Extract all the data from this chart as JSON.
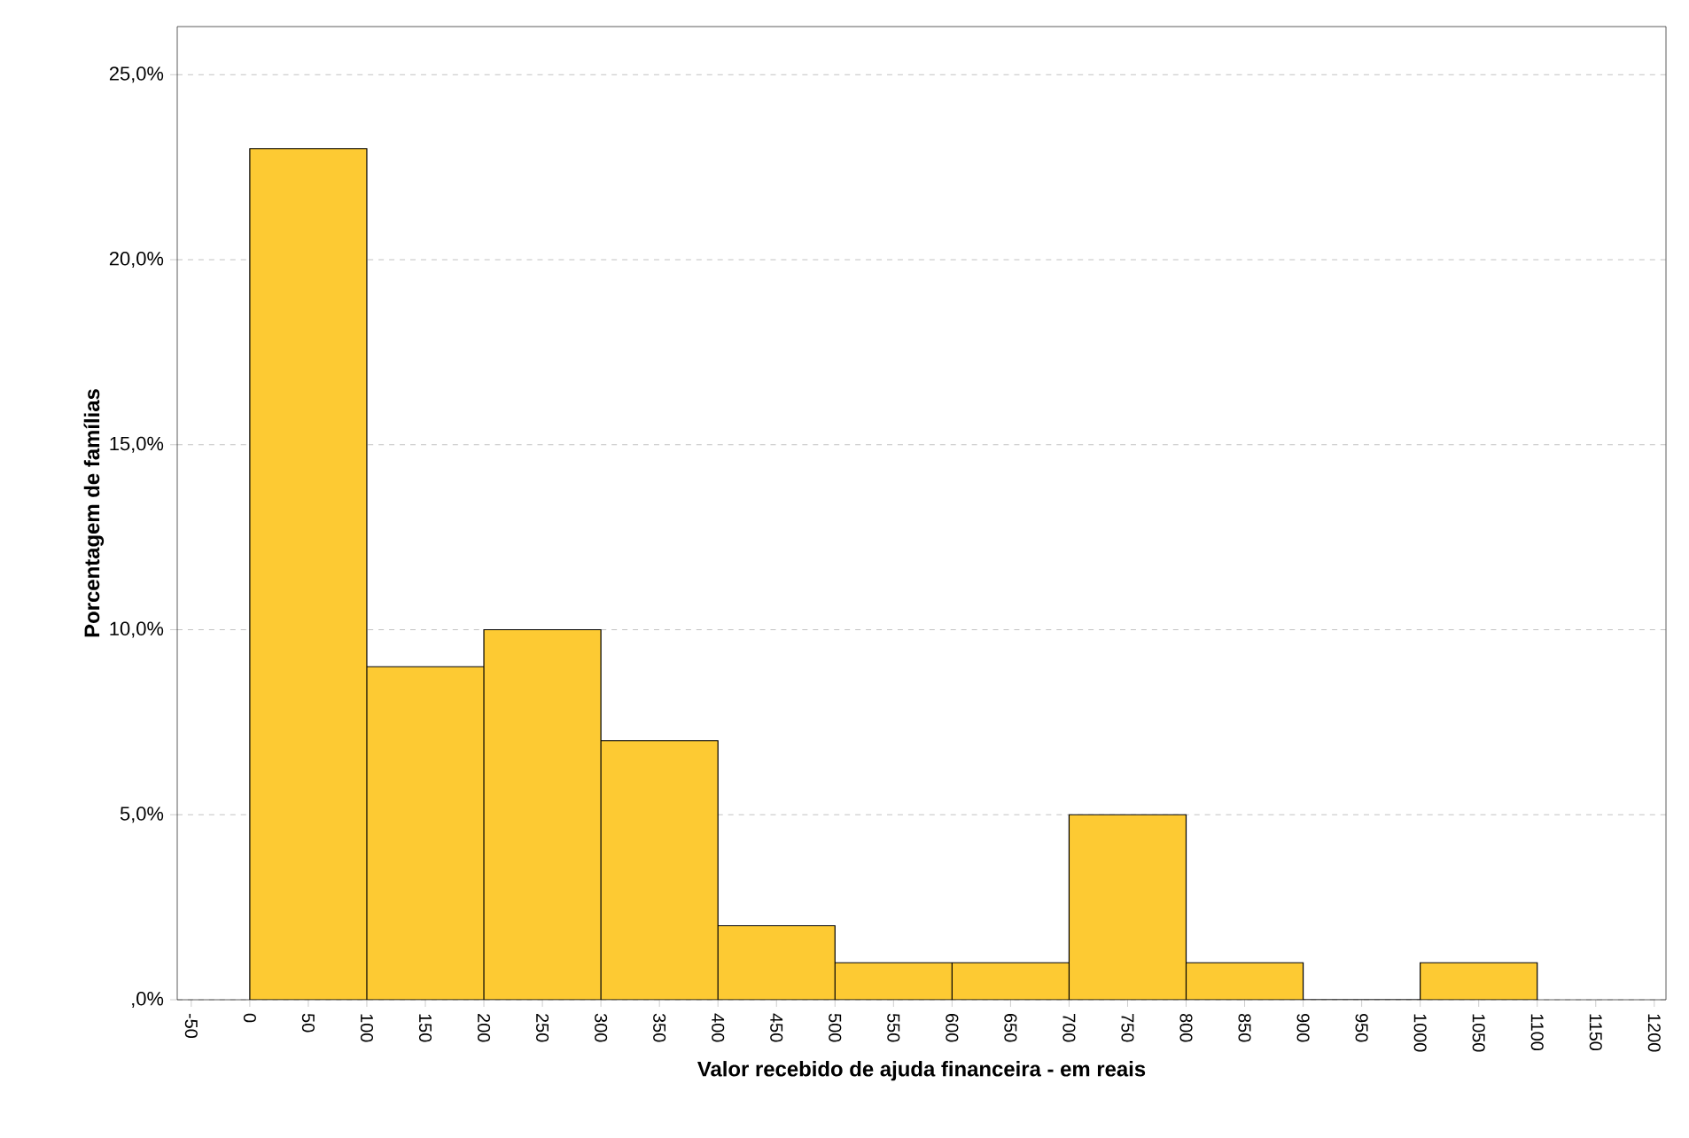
{
  "chart_data": {
    "type": "histogram",
    "xlabel": "Valor recebido de ajuda financeira - em reais",
    "ylabel": "Porcentagem de famílias",
    "bins": [
      0,
      100,
      200,
      300,
      400,
      500,
      600,
      700,
      800,
      900,
      1000,
      1100
    ],
    "values": [
      23,
      9,
      10,
      7,
      2,
      1,
      1,
      5,
      1,
      0,
      1
    ],
    "color": "#fdca33",
    "xlim": [
      -62,
      1210
    ],
    "ylim": [
      0,
      26.3
    ],
    "xticks": [
      -50,
      0,
      50,
      100,
      150,
      200,
      250,
      300,
      350,
      400,
      450,
      500,
      550,
      600,
      650,
      700,
      750,
      800,
      850,
      900,
      950,
      1000,
      1050,
      1100,
      1150,
      1200
    ],
    "yticks": [
      {
        "value": 0,
        "label": ",0%"
      },
      {
        "value": 5,
        "label": "5,0%"
      },
      {
        "value": 10,
        "label": "10,0%"
      },
      {
        "value": 15,
        "label": "15,0%"
      },
      {
        "value": 20,
        "label": "20,0%"
      },
      {
        "value": 25,
        "label": "25,0%"
      }
    ],
    "grid": "y"
  }
}
